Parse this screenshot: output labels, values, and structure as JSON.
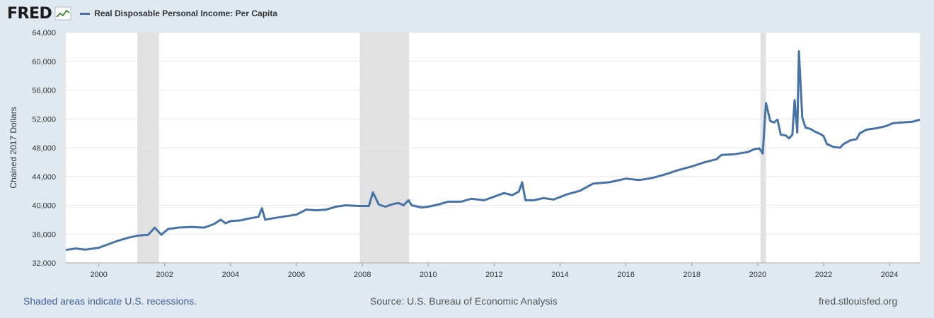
{
  "brand": {
    "logo": "FRED",
    "logo_icon": "fred-chart-icon"
  },
  "footer": {
    "recession_note": "Shaded areas indicate U.S. recessions.",
    "source": "Source: U.S. Bureau of Economic Analysis",
    "site": "fred.stlouisfed.org"
  },
  "colors": {
    "line": "#4572a7",
    "recession": "#e1e1e1",
    "background": "#e1e9f0",
    "plot": "#ffffff"
  },
  "chart_data": {
    "type": "line",
    "title": "Real Disposable Personal Income: Per Capita",
    "xlabel": "",
    "ylabel": "Chained 2017 Dollars",
    "xlim": [
      1999.0,
      2024.92
    ],
    "ylim": [
      32000,
      64000
    ],
    "yticks": [
      32000,
      36000,
      40000,
      44000,
      48000,
      52000,
      56000,
      60000,
      64000
    ],
    "ytick_labels": [
      "32,000",
      "36,000",
      "40,000",
      "44,000",
      "48,000",
      "52,000",
      "56,000",
      "60,000",
      "64,000"
    ],
    "xticks": [
      2000,
      2002,
      2004,
      2006,
      2008,
      2010,
      2012,
      2014,
      2016,
      2018,
      2020,
      2022,
      2024
    ],
    "xtick_labels": [
      "2000",
      "2002",
      "2004",
      "2006",
      "2008",
      "2010",
      "2012",
      "2014",
      "2016",
      "2018",
      "2020",
      "2022",
      "2024"
    ],
    "grid": true,
    "legend": "top-left",
    "recessions": [
      [
        2001.17,
        2001.83
      ],
      [
        2007.92,
        2009.42
      ],
      [
        2020.08,
        2020.25
      ]
    ],
    "series": [
      {
        "name": "Real Disposable Personal Income: Per Capita",
        "points": [
          [
            1999.0,
            33800
          ],
          [
            1999.3,
            34000
          ],
          [
            1999.6,
            33850
          ],
          [
            2000.0,
            34100
          ],
          [
            2000.3,
            34600
          ],
          [
            2000.6,
            35100
          ],
          [
            2000.9,
            35500
          ],
          [
            2001.2,
            35800
          ],
          [
            2001.5,
            35900
          ],
          [
            2001.7,
            36900
          ],
          [
            2001.9,
            35900
          ],
          [
            2002.1,
            36700
          ],
          [
            2002.4,
            36900
          ],
          [
            2002.8,
            37000
          ],
          [
            2003.2,
            36900
          ],
          [
            2003.5,
            37400
          ],
          [
            2003.7,
            38000
          ],
          [
            2003.85,
            37500
          ],
          [
            2004.0,
            37800
          ],
          [
            2004.3,
            37900
          ],
          [
            2004.6,
            38200
          ],
          [
            2004.85,
            38400
          ],
          [
            2004.95,
            39600
          ],
          [
            2005.05,
            38000
          ],
          [
            2005.3,
            38200
          ],
          [
            2005.7,
            38500
          ],
          [
            2006.0,
            38700
          ],
          [
            2006.3,
            39400
          ],
          [
            2006.6,
            39300
          ],
          [
            2006.9,
            39400
          ],
          [
            2007.2,
            39800
          ],
          [
            2007.5,
            40000
          ],
          [
            2007.9,
            39900
          ],
          [
            2008.2,
            39900
          ],
          [
            2008.32,
            41800
          ],
          [
            2008.5,
            40100
          ],
          [
            2008.7,
            39800
          ],
          [
            2008.95,
            40200
          ],
          [
            2009.1,
            40300
          ],
          [
            2009.25,
            40000
          ],
          [
            2009.4,
            40700
          ],
          [
            2009.5,
            40000
          ],
          [
            2009.8,
            39700
          ],
          [
            2010.0,
            39800
          ],
          [
            2010.3,
            40100
          ],
          [
            2010.6,
            40500
          ],
          [
            2011.0,
            40500
          ],
          [
            2011.3,
            40900
          ],
          [
            2011.7,
            40700
          ],
          [
            2012.0,
            41200
          ],
          [
            2012.3,
            41700
          ],
          [
            2012.55,
            41400
          ],
          [
            2012.75,
            41900
          ],
          [
            2012.85,
            43200
          ],
          [
            2012.95,
            40700
          ],
          [
            2013.2,
            40700
          ],
          [
            2013.5,
            41000
          ],
          [
            2013.8,
            40800
          ],
          [
            2014.2,
            41500
          ],
          [
            2014.6,
            42000
          ],
          [
            2015.0,
            43000
          ],
          [
            2015.5,
            43200
          ],
          [
            2016.0,
            43700
          ],
          [
            2016.4,
            43500
          ],
          [
            2016.8,
            43800
          ],
          [
            2017.2,
            44300
          ],
          [
            2017.6,
            44900
          ],
          [
            2018.0,
            45400
          ],
          [
            2018.4,
            46000
          ],
          [
            2018.75,
            46400
          ],
          [
            2018.9,
            47000
          ],
          [
            2019.3,
            47100
          ],
          [
            2019.7,
            47400
          ],
          [
            2019.9,
            47800
          ],
          [
            2020.05,
            47900
          ],
          [
            2020.15,
            47200
          ],
          [
            2020.25,
            54200
          ],
          [
            2020.38,
            51700
          ],
          [
            2020.5,
            51500
          ],
          [
            2020.6,
            51900
          ],
          [
            2020.7,
            49800
          ],
          [
            2020.85,
            49700
          ],
          [
            2020.95,
            49300
          ],
          [
            2021.05,
            49800
          ],
          [
            2021.12,
            54600
          ],
          [
            2021.2,
            50100
          ],
          [
            2021.25,
            61400
          ],
          [
            2021.35,
            52200
          ],
          [
            2021.45,
            50800
          ],
          [
            2021.6,
            50600
          ],
          [
            2021.75,
            50200
          ],
          [
            2021.9,
            49900
          ],
          [
            2022.0,
            49600
          ],
          [
            2022.1,
            48500
          ],
          [
            2022.3,
            48100
          ],
          [
            2022.5,
            48000
          ],
          [
            2022.6,
            48500
          ],
          [
            2022.8,
            49000
          ],
          [
            2023.0,
            49200
          ],
          [
            2023.1,
            50000
          ],
          [
            2023.3,
            50500
          ],
          [
            2023.6,
            50700
          ],
          [
            2023.9,
            51000
          ],
          [
            2024.1,
            51400
          ],
          [
            2024.4,
            51500
          ],
          [
            2024.7,
            51600
          ],
          [
            2024.92,
            51900
          ]
        ]
      }
    ]
  }
}
